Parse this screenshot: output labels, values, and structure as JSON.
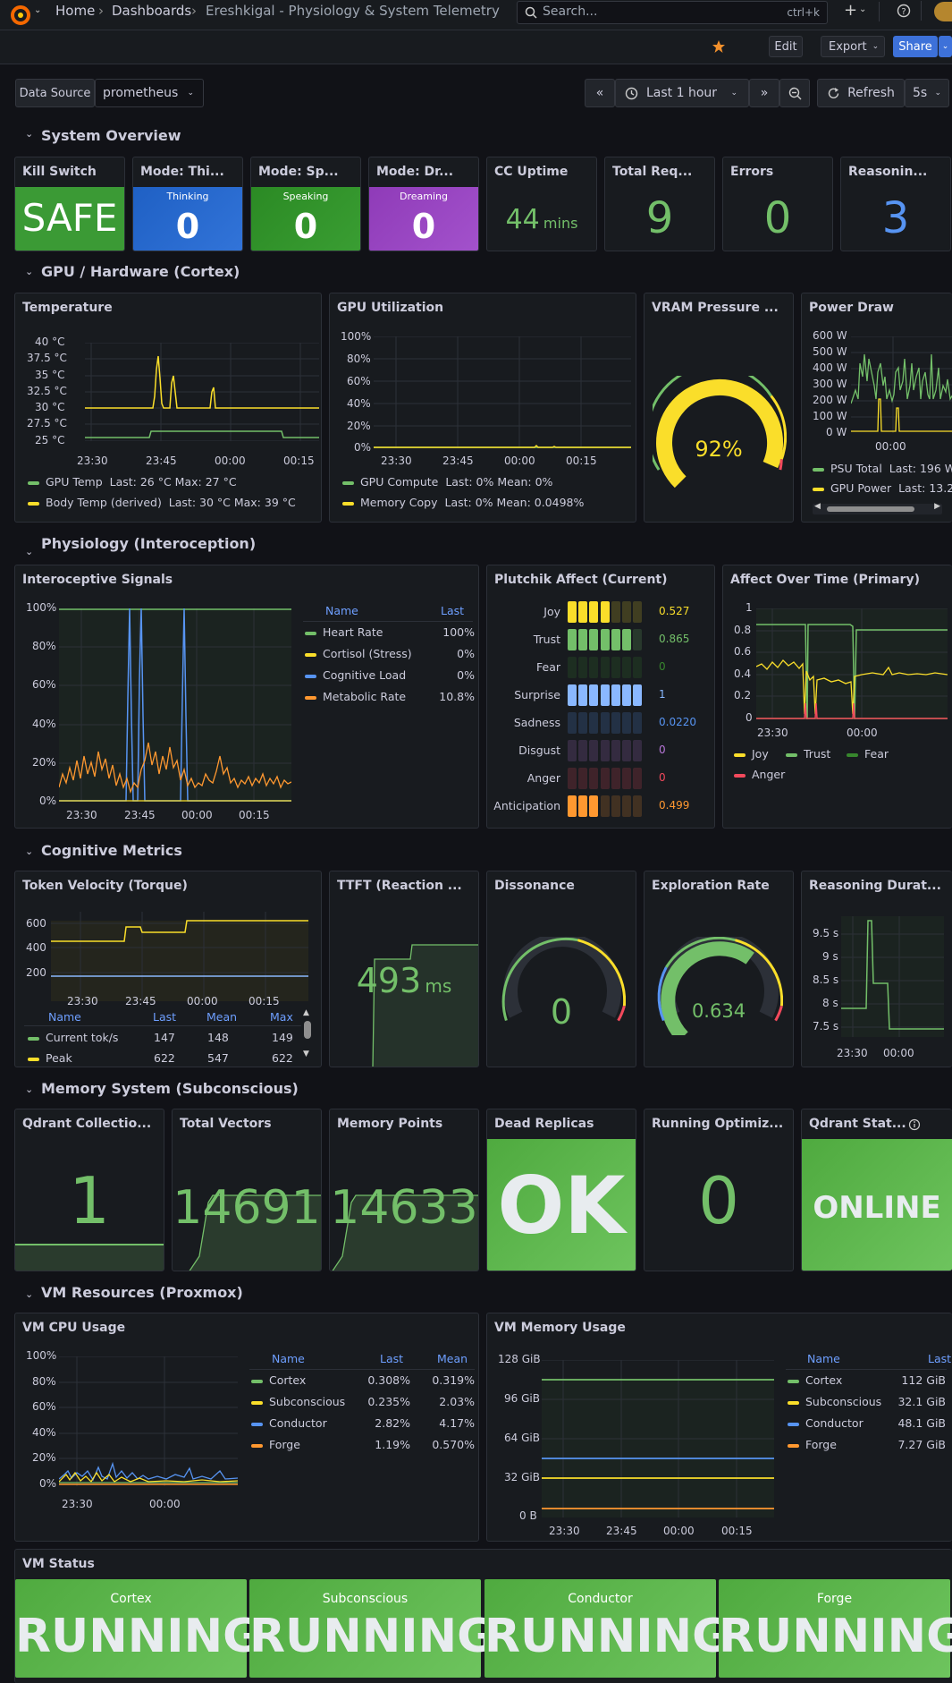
{
  "header": {
    "breadcrumbs": [
      "Home",
      "Dashboards",
      "Ereshkigal - Physiology & System Telemetry"
    ],
    "search_placeholder": "Search...",
    "search_shortcut": "ctrl+k",
    "add_label": "+",
    "edit_label": "Edit",
    "export_label": "Export",
    "share_label": "Share"
  },
  "controls": {
    "datasource_label": "Data Source",
    "datasource_value": "prometheus",
    "time_range": "Last 1 hour",
    "refresh_label": "Refresh",
    "refresh_interval": "5s"
  },
  "sections": {
    "overview": "System Overview",
    "gpu": "GPU / Hardware (Cortex)",
    "physio": "Physiology (Interoception)",
    "cognitive": "Cognitive Metrics",
    "memory": "Memory System (Subconscious)",
    "vm": "VM Resources (Proxmox)"
  },
  "overview": {
    "kill_switch": {
      "title": "Kill Switch",
      "value": "SAFE"
    },
    "mode_thinking": {
      "title": "Mode: Thi...",
      "label": "Thinking",
      "value": "0"
    },
    "mode_speaking": {
      "title": "Mode: Sp...",
      "label": "Speaking",
      "value": "0"
    },
    "mode_dreaming": {
      "title": "Mode: Dr...",
      "label": "Dreaming",
      "value": "0"
    },
    "cc_uptime": {
      "title": "CC Uptime",
      "value": "44",
      "unit": "mins"
    },
    "total_requests": {
      "title": "Total Req...",
      "value": "9"
    },
    "errors": {
      "title": "Errors",
      "value": "0"
    },
    "reasoning": {
      "title": "Reasonin...",
      "value": "3"
    }
  },
  "temperature": {
    "title": "Temperature",
    "yticks": [
      "40 °C",
      "37.5 °C",
      "35 °C",
      "32.5 °C",
      "30 °C",
      "27.5 °C",
      "25 °C"
    ],
    "xticks": [
      "23:30",
      "23:45",
      "00:00",
      "00:15"
    ],
    "legend": [
      {
        "name": "GPU Temp",
        "stats": "Last: 26 °C   Max: 27 °C",
        "color": "#73bf69"
      },
      {
        "name": "Body Temp (derived)",
        "stats": "Last: 30 °C   Max: 39 °C",
        "color": "#fade2a"
      }
    ]
  },
  "gpu_util": {
    "title": "GPU Utilization",
    "yticks": [
      "100%",
      "80%",
      "60%",
      "40%",
      "20%",
      "0%"
    ],
    "xticks": [
      "23:30",
      "23:45",
      "00:00",
      "00:15"
    ],
    "legend": [
      {
        "name": "GPU Compute",
        "stats": "Last: 0%   Mean: 0%",
        "color": "#73bf69"
      },
      {
        "name": "Memory Copy",
        "stats": "Last: 0%   Mean: 0.0498%",
        "color": "#fade2a"
      }
    ]
  },
  "vram": {
    "title": "VRAM Pressure ...",
    "value": "92%",
    "fraction": 0.92
  },
  "power": {
    "title": "Power Draw",
    "yticks": [
      "600 W",
      "500 W",
      "400 W",
      "300 W",
      "200 W",
      "100 W",
      "0 W"
    ],
    "xticks": [
      "00:00"
    ],
    "legend": [
      {
        "name": "PSU Total",
        "stats": "Last: 196 W",
        "color": "#73bf69"
      },
      {
        "name": "GPU Power",
        "stats": "Last: 13.2",
        "color": "#fade2a"
      }
    ]
  },
  "intero": {
    "title": "Interoceptive Signals",
    "yticks": [
      "100%",
      "80%",
      "60%",
      "40%",
      "20%",
      "0%"
    ],
    "xticks": [
      "23:30",
      "23:45",
      "00:00",
      "00:15"
    ],
    "table_headers": [
      "Name",
      "Last"
    ],
    "rows": [
      {
        "name": "Heart Rate",
        "last": "100%",
        "color": "#73bf69"
      },
      {
        "name": "Cortisol (Stress)",
        "last": "0%",
        "color": "#fade2a"
      },
      {
        "name": "Cognitive Load",
        "last": "0%",
        "color": "#5794f2"
      },
      {
        "name": "Metabolic Rate",
        "last": "10.8%",
        "color": "#ff9830"
      }
    ]
  },
  "plutchik": {
    "title": "Plutchik Affect (Current)",
    "rows": [
      {
        "label": "Joy",
        "value": "0.527",
        "level": 0.527,
        "color": "#fade2a"
      },
      {
        "label": "Trust",
        "value": "0.865",
        "level": 0.865,
        "color": "#73bf69"
      },
      {
        "label": "Fear",
        "value": "0",
        "level": 0.0,
        "color": "#37872d"
      },
      {
        "label": "Surprise",
        "value": "1",
        "level": 1.0,
        "color": "#8ab8ff"
      },
      {
        "label": "Sadness",
        "value": "0.0220",
        "level": 0.022,
        "color": "#5794f2"
      },
      {
        "label": "Disgust",
        "value": "0",
        "level": 0.0,
        "color": "#b877d9"
      },
      {
        "label": "Anger",
        "value": "0",
        "level": 0.0,
        "color": "#f2495c"
      },
      {
        "label": "Anticipation",
        "value": "0.499",
        "level": 0.499,
        "color": "#ff9830"
      }
    ]
  },
  "affect_time": {
    "title": "Affect Over Time (Primary)",
    "yticks": [
      "1",
      "0.8",
      "0.6",
      "0.4",
      "0.2",
      "0"
    ],
    "xticks": [
      "23:30",
      "00:00"
    ],
    "legend": [
      {
        "name": "Joy",
        "color": "#fade2a"
      },
      {
        "name": "Trust",
        "color": "#73bf69"
      },
      {
        "name": "Fear",
        "color": "#37872d"
      },
      {
        "name": "Anger",
        "color": "#f2495c"
      }
    ]
  },
  "token_velocity": {
    "title": "Token Velocity (Torque)",
    "yticks": [
      "600",
      "400",
      "200"
    ],
    "xticks": [
      "23:30",
      "23:45",
      "00:00",
      "00:15"
    ],
    "table_headers": [
      "Name",
      "Last",
      "Mean",
      "Max"
    ],
    "rows": [
      {
        "name": "Current tok/s",
        "last": "147",
        "mean": "148",
        "max": "149",
        "color": "#73bf69"
      },
      {
        "name": "Peak",
        "last": "622",
        "mean": "547",
        "max": "622",
        "color": "#fade2a"
      }
    ]
  },
  "ttft": {
    "title": "TTFT (Reaction ...",
    "value": "493",
    "unit": "ms"
  },
  "dissonance": {
    "title": "Dissonance",
    "value": "0",
    "fraction": 0.0
  },
  "exploration": {
    "title": "Exploration Rate",
    "value": "0.634",
    "fraction": 0.634
  },
  "reasoning_dur": {
    "title": "Reasoning Durat...",
    "yticks": [
      "9.5 s",
      "9 s",
      "8.5 s",
      "8 s",
      "7.5 s"
    ],
    "xticks": [
      "23:30",
      "00:00"
    ]
  },
  "memory": {
    "collections": {
      "title": "Qdrant Collectio...",
      "value": "1"
    },
    "total_vectors": {
      "title": "Total Vectors",
      "value": "14691"
    },
    "memory_points": {
      "title": "Memory Points",
      "value": "14633"
    },
    "dead_replicas": {
      "title": "Dead Replicas",
      "value": "OK"
    },
    "optimizations": {
      "title": "Running Optimiz...",
      "value": "0"
    },
    "qdrant_status": {
      "title": "Qdrant Stat...",
      "value": "ONLINE"
    }
  },
  "vm_cpu": {
    "title": "VM CPU Usage",
    "yticks": [
      "100%",
      "80%",
      "60%",
      "40%",
      "20%",
      "0%"
    ],
    "xticks": [
      "23:30",
      "00:00"
    ],
    "table_headers": [
      "Name",
      "Last",
      "Mean"
    ],
    "rows": [
      {
        "name": "Cortex",
        "last": "0.308%",
        "mean": "0.319%",
        "color": "#73bf69"
      },
      {
        "name": "Subconscious",
        "last": "0.235%",
        "mean": "2.03%",
        "color": "#fade2a"
      },
      {
        "name": "Conductor",
        "last": "2.82%",
        "mean": "4.17%",
        "color": "#5794f2"
      },
      {
        "name": "Forge",
        "last": "1.19%",
        "mean": "0.570%",
        "color": "#ff9830"
      }
    ]
  },
  "vm_mem": {
    "title": "VM Memory Usage",
    "yticks": [
      "128 GiB",
      "96 GiB",
      "64 GiB",
      "32 GiB",
      "0 B"
    ],
    "xticks": [
      "23:30",
      "23:45",
      "00:00",
      "00:15"
    ],
    "table_headers": [
      "Name",
      "Last"
    ],
    "rows": [
      {
        "name": "Cortex",
        "last": "112 GiB",
        "color": "#73bf69"
      },
      {
        "name": "Subconscious",
        "last": "32.1 GiB",
        "color": "#fade2a"
      },
      {
        "name": "Conductor",
        "last": "48.1 GiB",
        "color": "#5794f2"
      },
      {
        "name": "Forge",
        "last": "7.27 GiB",
        "color": "#ff9830"
      }
    ]
  },
  "vm_status": {
    "title": "VM Status",
    "tiles": [
      {
        "name": "Cortex",
        "value": "RUNNING"
      },
      {
        "name": "Subconscious",
        "value": "RUNNING"
      },
      {
        "name": "Conductor",
        "value": "RUNNING"
      },
      {
        "name": "Forge",
        "value": "RUNNING"
      }
    ]
  }
}
